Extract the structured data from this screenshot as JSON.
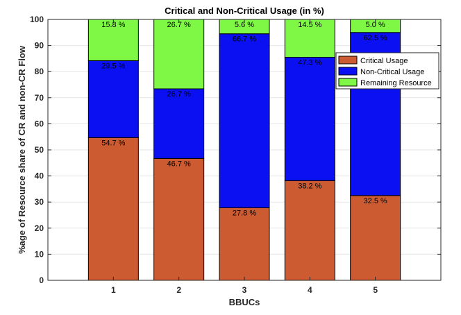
{
  "chart_data": {
    "type": "bar",
    "stacked": true,
    "title": "Critical and Non-Critical Usage (in %)",
    "xlabel": "BBUCs",
    "ylabel": "%age of Resource share of CR and non-CR Flow",
    "categories": [
      "1",
      "2",
      "3",
      "4",
      "5"
    ],
    "ylim": [
      0,
      100
    ],
    "yticks": [
      "0",
      "10",
      "20",
      "30",
      "40",
      "50",
      "60",
      "70",
      "80",
      "90",
      "100"
    ],
    "legend_position": "top-right",
    "grid": true,
    "series": [
      {
        "name": "Critical Usage",
        "color": "#cc5b32",
        "values": [
          54.7,
          46.7,
          27.8,
          38.2,
          32.5
        ],
        "labels": [
          "54.7 %",
          "46.7 %",
          "27.8 %",
          "38.2 %",
          "32.5 %"
        ]
      },
      {
        "name": "Non-Critical Usage",
        "color": "#0a10f2",
        "values": [
          29.5,
          26.7,
          66.7,
          47.3,
          62.5
        ],
        "labels": [
          "29.5 %",
          "26.7 %",
          "66.7 %",
          "47.3 %",
          "62.5 %"
        ]
      },
      {
        "name": "Remaining Resource",
        "color": "#7ff745",
        "values": [
          15.8,
          26.7,
          5.6,
          14.5,
          5.0
        ],
        "labels": [
          "15.8 %",
          "26.7 %",
          "5.6 %",
          "14.5 %",
          "5.0 %"
        ]
      }
    ]
  }
}
